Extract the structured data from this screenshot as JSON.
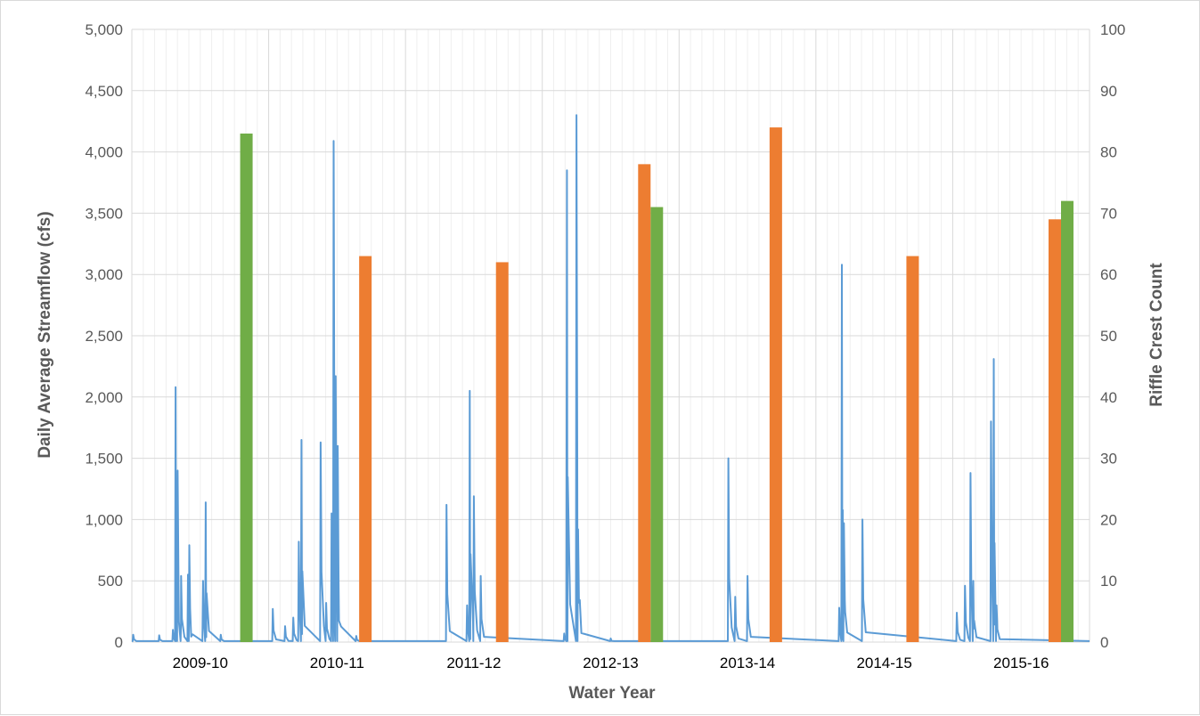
{
  "chart_data": {
    "type": "bar",
    "title": "",
    "xlabel": "Water Year",
    "ylabel": "Daily Average Streamflow (cfs)",
    "y2label": "Riffle Crest Count",
    "ylim": [
      0,
      5000
    ],
    "y2lim": [
      0,
      100
    ],
    "yticks": [
      "0",
      "500",
      "1,000",
      "1,500",
      "2,000",
      "2,500",
      "3,000",
      "3,500",
      "4,000",
      "4,500",
      "5,000"
    ],
    "y2ticks": [
      "0",
      "10",
      "20",
      "30",
      "40",
      "50",
      "60",
      "70",
      "80",
      "90",
      "100"
    ],
    "categories": [
      "2009-10",
      "2010-11",
      "2011-12",
      "2012-13",
      "2013-14",
      "2014-15",
      "2015-16"
    ],
    "grid": true,
    "legend": "none",
    "colors": {
      "streamflow": "#5b9bd5",
      "orange_bar": "#ed7d31",
      "green_bar": "#70ad47",
      "grid": "#d9d9d9"
    },
    "bar_series": [
      {
        "color": "orange",
        "values": [
          null,
          63,
          62,
          78,
          84,
          63,
          69
        ]
      },
      {
        "color": "green",
        "values": [
          83,
          null,
          null,
          71,
          null,
          null,
          72
        ]
      }
    ],
    "streamflow_peaks": [
      {
        "x": 2009.01,
        "y": 60
      },
      {
        "x": 2009.2,
        "y": 55
      },
      {
        "x": 2009.3,
        "y": 100
      },
      {
        "x": 2009.32,
        "y": 2080
      },
      {
        "x": 2009.335,
        "y": 1400
      },
      {
        "x": 2009.36,
        "y": 540
      },
      {
        "x": 2009.41,
        "y": 550
      },
      {
        "x": 2009.42,
        "y": 790
      },
      {
        "x": 2009.52,
        "y": 500
      },
      {
        "x": 2009.54,
        "y": 1140
      },
      {
        "x": 2009.65,
        "y": 60
      },
      {
        "x": 2010.03,
        "y": 270
      },
      {
        "x": 2010.12,
        "y": 130
      },
      {
        "x": 2010.18,
        "y": 200
      },
      {
        "x": 2010.22,
        "y": 820
      },
      {
        "x": 2010.24,
        "y": 1650
      },
      {
        "x": 2010.38,
        "y": 1630
      },
      {
        "x": 2010.42,
        "y": 320
      },
      {
        "x": 2010.46,
        "y": 1050
      },
      {
        "x": 2010.475,
        "y": 4090
      },
      {
        "x": 2010.49,
        "y": 2170
      },
      {
        "x": 2010.505,
        "y": 1600
      },
      {
        "x": 2010.64,
        "y": 50
      },
      {
        "x": 2011.3,
        "y": 1120
      },
      {
        "x": 2011.45,
        "y": 300
      },
      {
        "x": 2011.47,
        "y": 2050
      },
      {
        "x": 2011.5,
        "y": 1190
      },
      {
        "x": 2011.55,
        "y": 540
      },
      {
        "x": 2012.16,
        "y": 70
      },
      {
        "x": 2012.18,
        "y": 3850
      },
      {
        "x": 2012.25,
        "y": 4300
      },
      {
        "x": 2012.262,
        "y": 920
      },
      {
        "x": 2012.5,
        "y": 30
      },
      {
        "x": 2013.36,
        "y": 1500
      },
      {
        "x": 2013.41,
        "y": 370
      },
      {
        "x": 2013.5,
        "y": 540
      },
      {
        "x": 2014.17,
        "y": 280
      },
      {
        "x": 2014.19,
        "y": 3080
      },
      {
        "x": 2014.205,
        "y": 970
      },
      {
        "x": 2014.34,
        "y": 1000
      },
      {
        "x": 2015.03,
        "y": 240
      },
      {
        "x": 2015.09,
        "y": 460
      },
      {
        "x": 2015.13,
        "y": 1380
      },
      {
        "x": 2015.15,
        "y": 500
      },
      {
        "x": 2015.28,
        "y": 1800
      },
      {
        "x": 2015.3,
        "y": 2310
      },
      {
        "x": 2015.32,
        "y": 300
      }
    ]
  }
}
